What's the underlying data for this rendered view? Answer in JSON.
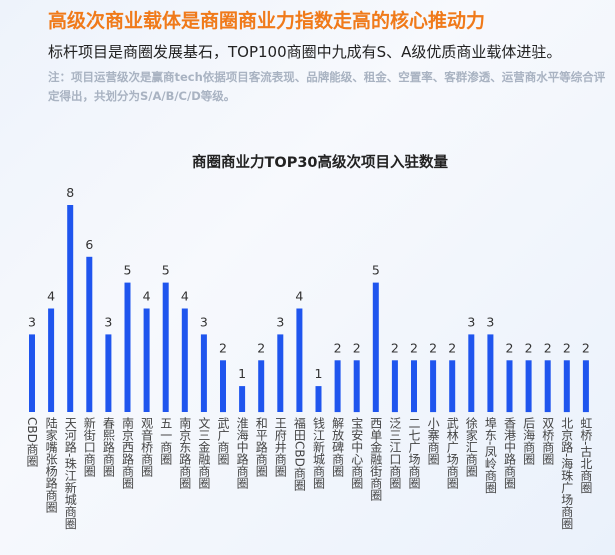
{
  "header": {
    "title": "高级次商业载体是商圈商业力指数走高的核心推动力",
    "subtitle": "标杆项目是商圈发展基石，TOP100商圈中九成有S、A级优质商业载体进驻。",
    "note": "注：项目运营级次是赢商tech依据项目客流表现、品牌能级、租金、空置率、客群渗透、运营商水平等综合评定得出，共划分为S/A/B/C/D等级。"
  },
  "chart_data": {
    "type": "bar",
    "title": "商圈商业力TOP30高级次项目入驻数量",
    "categories": [
      "CBD商圈",
      "陆家嘴张杨路商圈",
      "天河路-珠江新城商圈",
      "新街口商圈",
      "春熙路商圈",
      "南京西路商圈",
      "观音桥商圈",
      "五一商圈",
      "南京东路商圈",
      "文三金融商圈",
      "武广商圈",
      "淮海中路商圈",
      "和平路商圈",
      "王府井商圈",
      "福田CBD商圈",
      "钱江新城商圈",
      "解放碑商圈",
      "宝安中心商圈",
      "西单金融街商圈",
      "泛三江口商圈",
      "二七广场商圈",
      "小寨商圈",
      "武林广场商圈",
      "徐家汇商圈",
      "埠东-凤岭商圈",
      "香港中路商圈",
      "后海商圈",
      "双桥商圈",
      "北京路-海珠广场商圈",
      "虹桥-古北商圈"
    ],
    "values": [
      3,
      4,
      8,
      6,
      3,
      5,
      4,
      5,
      4,
      3,
      2,
      1,
      2,
      3,
      4,
      1,
      2,
      2,
      5,
      2,
      2,
      2,
      2,
      3,
      3,
      2,
      2,
      2,
      2,
      2
    ],
    "ylim": [
      0,
      8
    ],
    "bar_color": "#1f55ee",
    "label_color": "#333333",
    "category_color": "#444444",
    "grid": false,
    "legend": "none"
  }
}
